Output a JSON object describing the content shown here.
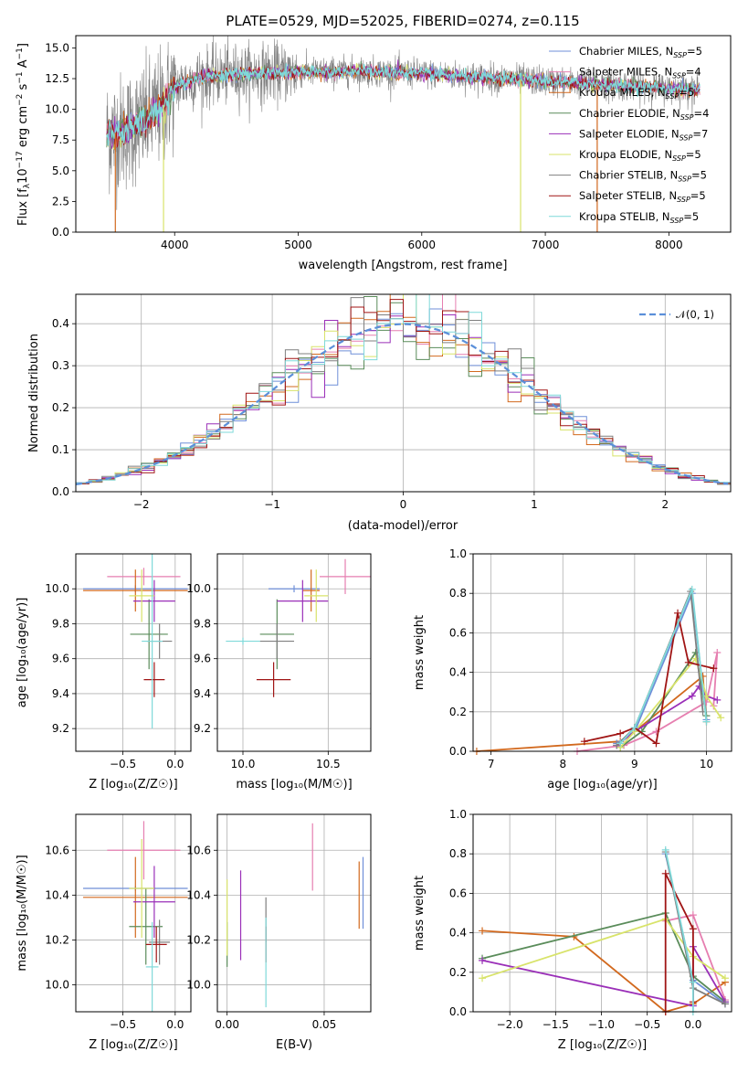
{
  "colors": {
    "chabrier_miles": "#6f8fd8",
    "salpeter_miles": "#e67fb0",
    "kroupa_miles": "#d2691e",
    "chabrier_elodie": "#5a8c5a",
    "salpeter_elodie": "#9a2fb8",
    "kroupa_elodie": "#d8e36a",
    "chabrier_stelib": "#7f7f7f",
    "salpeter_stelib": "#a01515",
    "kroupa_stelib": "#7fd9d9",
    "normal": "#5b8fd9"
  },
  "chart_data": [
    {
      "id": "spectrum",
      "type": "line",
      "title": "PLATE=0529, MJD=52025, FIBERID=0274, z=0.115",
      "xlabel": "wavelength [Angstrom, rest frame]",
      "ylabel": "Flux [f$_\\lambda$10$^{-17}$ erg cm$^{-2}$ s$^{-1}$ A$^{-1}$]",
      "ylabel_parts": {
        "a": "Flux [f",
        "b": "λ",
        "c": "10",
        "d": "−17",
        "e": " erg cm",
        "f": "−2",
        "g": " s",
        "h": "−1",
        "i": " A",
        "j": "−1",
        "k": "]"
      },
      "xlim": [
        3200,
        8500
      ],
      "ylim": [
        0,
        16
      ],
      "xticks": [
        4000,
        5000,
        6000,
        7000,
        8000
      ],
      "yticks": [
        0.0,
        2.5,
        5.0,
        7.5,
        10.0,
        12.5,
        15.0
      ],
      "data_range": [
        3450,
        8250
      ],
      "continuum": [
        [
          3450,
          8.0
        ],
        [
          3600,
          8.2
        ],
        [
          3750,
          9.0
        ],
        [
          3900,
          10.2
        ],
        [
          4000,
          11.8
        ],
        [
          4200,
          12.6
        ],
        [
          4500,
          12.9
        ],
        [
          5000,
          13.0
        ],
        [
          5500,
          13.1
        ],
        [
          6000,
          12.9
        ],
        [
          6500,
          12.6
        ],
        [
          7000,
          12.3
        ],
        [
          7500,
          12.0
        ],
        [
          8000,
          11.7
        ],
        [
          8250,
          11.6
        ]
      ],
      "legend": [
        {
          "key": "chabrier_miles",
          "label": "Chabrier MILES, N",
          "sub": "SSP",
          "suffix": "=5"
        },
        {
          "key": "salpeter_miles",
          "label": "Salpeter MILES, N",
          "sub": "SSP",
          "suffix": "=4"
        },
        {
          "key": "kroupa_miles",
          "label": "Kroupa MILES, N",
          "sub": "SSP",
          "suffix": "=5"
        },
        {
          "key": "chabrier_elodie",
          "label": "Chabrier ELODIE, N",
          "sub": "SSP",
          "suffix": "=4"
        },
        {
          "key": "salpeter_elodie",
          "label": "Salpeter ELODIE, N",
          "sub": "SSP",
          "suffix": "=7"
        },
        {
          "key": "kroupa_elodie",
          "label": "Kroupa ELODIE, N",
          "sub": "SSP",
          "suffix": "=5"
        },
        {
          "key": "chabrier_stelib",
          "label": "Chabrier STELIB, N",
          "sub": "SSP",
          "suffix": "=5"
        },
        {
          "key": "salpeter_stelib",
          "label": "Salpeter STELIB, N",
          "sub": "SSP",
          "suffix": "=5"
        },
        {
          "key": "kroupa_stelib",
          "label": "Kroupa STELIB, N",
          "sub": "SSP",
          "suffix": "=5"
        }
      ],
      "legend_placement": "upper right",
      "dropouts": [
        {
          "key": "kroupa_miles",
          "x": 3520
        },
        {
          "key": "kroupa_elodie",
          "x": 3910
        },
        {
          "key": "kroupa_elodie",
          "x": 6800
        },
        {
          "key": "kroupa_miles",
          "x": 7420
        }
      ]
    },
    {
      "id": "residuals",
      "type": "histogram",
      "xlabel": "(data-model)/error",
      "ylabel": "Normed distribution",
      "xlim": [
        -2.5,
        2.5
      ],
      "ylim": [
        0,
        0.47
      ],
      "xticks": [
        -2,
        -1,
        0,
        1,
        2
      ],
      "yticks": [
        0.0,
        0.1,
        0.2,
        0.3,
        0.4
      ],
      "legend": [
        {
          "key": "normal",
          "label": "𝒩(0, 1)"
        }
      ],
      "legend_placement": "upper right",
      "bin_width": 0.1,
      "grid": true
    },
    {
      "id": "z_age",
      "type": "errorbar",
      "xlabel": "Z [log₁₀(Z/Z☉)]",
      "ylabel": "age  [log₁₀(age/yr)]",
      "xlim": [
        -0.95,
        0.15
      ],
      "ylim": [
        9.07,
        10.2
      ],
      "xticks": [
        -0.5,
        0.0
      ],
      "yticks": [
        9.2,
        9.4,
        9.6,
        9.8,
        10.0
      ],
      "points": [
        {
          "key": "chabrier_miles",
          "x": -0.38,
          "xerr": 0.5,
          "y": 10.0,
          "yerr": 0.02
        },
        {
          "key": "salpeter_miles",
          "x": -0.3,
          "xerr": 0.35,
          "y": 10.07,
          "yerr": 0.05
        },
        {
          "key": "kroupa_miles",
          "x": -0.38,
          "xerr": 0.5,
          "y": 9.99,
          "yerr": 0.12
        },
        {
          "key": "chabrier_elodie",
          "x": -0.25,
          "xerr": 0.18,
          "y": 9.74,
          "yerr": 0.2
        },
        {
          "key": "salpeter_elodie",
          "x": -0.2,
          "xerr": 0.2,
          "y": 9.93,
          "yerr": 0.12
        },
        {
          "key": "kroupa_elodie",
          "x": -0.32,
          "xerr": 0.12,
          "y": 9.96,
          "yerr": 0.15
        },
        {
          "key": "chabrier_stelib",
          "x": -0.15,
          "xerr": 0.12,
          "y": 9.7,
          "yerr": 0.1
        },
        {
          "key": "salpeter_stelib",
          "x": -0.2,
          "xerr": 0.1,
          "y": 9.48,
          "yerr": 0.1
        },
        {
          "key": "kroupa_stelib",
          "x": -0.22,
          "xerr": 0.1,
          "y": 9.7,
          "yerr": 0.5
        }
      ]
    },
    {
      "id": "mass_age",
      "type": "errorbar",
      "xlabel": "mass [log₁₀(M/M☉)]",
      "ylabel": "",
      "xlim": [
        9.85,
        10.75
      ],
      "ylim": [
        9.07,
        10.2
      ],
      "xticks": [
        10.0,
        10.5
      ],
      "yticks": [
        9.2,
        9.4,
        9.6,
        9.8,
        10.0
      ],
      "points": [
        {
          "key": "chabrier_miles",
          "x": 10.3,
          "xerr": 0.15,
          "y": 10.0,
          "yerr": 0.02
        },
        {
          "key": "salpeter_miles",
          "x": 10.6,
          "xerr": 0.15,
          "y": 10.07,
          "yerr": 0.1
        },
        {
          "key": "kroupa_miles",
          "x": 10.4,
          "xerr": 0.05,
          "y": 9.99,
          "yerr": 0.12
        },
        {
          "key": "chabrier_elodie",
          "x": 10.2,
          "xerr": 0.1,
          "y": 9.74,
          "yerr": 0.2
        },
        {
          "key": "salpeter_elodie",
          "x": 10.35,
          "xerr": 0.15,
          "y": 9.93,
          "yerr": 0.12
        },
        {
          "key": "kroupa_elodie",
          "x": 10.43,
          "xerr": 0.07,
          "y": 9.96,
          "yerr": 0.15
        },
        {
          "key": "chabrier_stelib",
          "x": 10.2,
          "xerr": 0.1,
          "y": 9.7,
          "yerr": 0.1
        },
        {
          "key": "salpeter_stelib",
          "x": 10.18,
          "xerr": 0.1,
          "y": 9.48,
          "yerr": 0.1
        },
        {
          "key": "kroupa_stelib",
          "x": 10.0,
          "xerr": 0.1,
          "y": 9.7,
          "yerr": 0.02
        }
      ]
    },
    {
      "id": "age_weight",
      "type": "line",
      "xlabel": "age  [log₁₀(age/yr)]",
      "ylabel": "mass weight",
      "xlim": [
        6.75,
        10.35
      ],
      "ylim": [
        0,
        1.0
      ],
      "xticks": [
        7,
        8,
        9,
        10
      ],
      "yticks": [
        0.0,
        0.2,
        0.4,
        0.6,
        0.8,
        1.0
      ],
      "series": [
        {
          "key": "kroupa_miles",
          "x": [
            6.8,
            8.8,
            9.0,
            9.95,
            10.0
          ],
          "y": [
            0.0,
            0.05,
            0.1,
            0.38,
            0.15
          ]
        },
        {
          "key": "salpeter_miles",
          "x": [
            8.2,
            8.85,
            9.3,
            10.0,
            10.15,
            10.1
          ],
          "y": [
            0.0,
            0.03,
            0.1,
            0.25,
            0.5,
            0.23
          ]
        },
        {
          "key": "chabrier_miles",
          "x": [
            8.75,
            9.0,
            9.8,
            10.0
          ],
          "y": [
            0.04,
            0.1,
            0.8,
            0.16
          ]
        },
        {
          "key": "chabrier_elodie",
          "x": [
            8.8,
            9.1,
            9.85,
            10.0
          ],
          "y": [
            0.02,
            0.1,
            0.5,
            0.18
          ]
        },
        {
          "key": "salpeter_elodie",
          "x": [
            8.75,
            9.0,
            9.8,
            9.9,
            10.0,
            10.15
          ],
          "y": [
            0.03,
            0.1,
            0.28,
            0.33,
            0.28,
            0.26
          ]
        },
        {
          "key": "kroupa_elodie",
          "x": [
            8.8,
            9.0,
            9.85,
            10.0,
            10.2
          ],
          "y": [
            0.02,
            0.1,
            0.47,
            0.28,
            0.17
          ]
        },
        {
          "key": "chabrier_stelib",
          "x": [
            8.75,
            9.0,
            9.78,
            9.95
          ],
          "y": [
            0.03,
            0.12,
            0.81,
            0.2
          ]
        },
        {
          "key": "salpeter_stelib",
          "x": [
            8.3,
            8.8,
            9.0,
            9.3,
            9.6,
            9.75,
            10.1
          ],
          "y": [
            0.05,
            0.09,
            0.12,
            0.04,
            0.7,
            0.45,
            0.42
          ]
        },
        {
          "key": "kroupa_stelib",
          "x": [
            8.8,
            9.0,
            9.8,
            10.0
          ],
          "y": [
            0.04,
            0.12,
            0.82,
            0.15
          ]
        }
      ]
    },
    {
      "id": "z_mass",
      "type": "errorbar",
      "xlabel": "Z [log₁₀(Z/Z☉)]",
      "ylabel": "mass [log₁₀(M/M☉)]",
      "xlim": [
        -0.95,
        0.15
      ],
      "ylim": [
        9.88,
        10.76
      ],
      "xticks": [
        -0.5,
        0.0
      ],
      "yticks": [
        10.0,
        10.2,
        10.4,
        10.6
      ],
      "points": [
        {
          "key": "chabrier_miles",
          "x": -0.38,
          "xerr": 0.5,
          "y": 10.43,
          "yerr": 0.01
        },
        {
          "key": "salpeter_miles",
          "x": -0.3,
          "xerr": 0.35,
          "y": 10.6,
          "yerr": 0.13
        },
        {
          "key": "kroupa_miles",
          "x": -0.38,
          "xerr": 0.5,
          "y": 10.39,
          "yerr": 0.18
        },
        {
          "key": "chabrier_elodie",
          "x": -0.28,
          "xerr": 0.16,
          "y": 10.26,
          "yerr": 0.17
        },
        {
          "key": "salpeter_elodie",
          "x": -0.2,
          "xerr": 0.2,
          "y": 10.37,
          "yerr": 0.16
        },
        {
          "key": "kroupa_elodie",
          "x": -0.32,
          "xerr": 0.12,
          "y": 10.43,
          "yerr": 0.22
        },
        {
          "key": "chabrier_stelib",
          "x": -0.15,
          "xerr": 0.1,
          "y": 10.19,
          "yerr": 0.1
        },
        {
          "key": "salpeter_stelib",
          "x": -0.18,
          "xerr": 0.1,
          "y": 10.18,
          "yerr": 0.08
        },
        {
          "key": "kroupa_stelib",
          "x": -0.22,
          "xerr": 0.06,
          "y": 10.08,
          "yerr": 0.2
        }
      ]
    },
    {
      "id": "ebv_mass",
      "type": "errorbar",
      "xlabel": "E(B-V)",
      "ylabel": "",
      "xlim": [
        -0.005,
        0.074
      ],
      "ylim": [
        9.88,
        10.76
      ],
      "xticks": [
        0.0,
        0.05
      ],
      "yticks": [
        10.0,
        10.2,
        10.4,
        10.6
      ],
      "points": [
        {
          "key": "chabrier_miles",
          "x": 0.07,
          "xerr": 0,
          "y": 10.41,
          "yerr": 0.16
        },
        {
          "key": "salpeter_miles",
          "x": 0.044,
          "xerr": 0,
          "y": 10.57,
          "yerr": 0.15
        },
        {
          "key": "kroupa_miles",
          "x": 0.068,
          "xerr": 0,
          "y": 10.4,
          "yerr": 0.15
        },
        {
          "key": "chabrier_elodie",
          "x": 0.0,
          "xerr": 0,
          "y": 10.18,
          "yerr": 0.1
        },
        {
          "key": "salpeter_elodie",
          "x": 0.007,
          "xerr": 0,
          "y": 10.31,
          "yerr": 0.2
        },
        {
          "key": "kroupa_elodie",
          "x": 0.0,
          "xerr": 0,
          "y": 10.3,
          "yerr": 0.17
        },
        {
          "key": "chabrier_stelib",
          "x": 0.02,
          "xerr": 0,
          "y": 10.29,
          "yerr": 0.1
        },
        {
          "key": "salpeter_stelib",
          "x": 0.02,
          "xerr": 0,
          "y": 10.18,
          "yerr": 0.08
        },
        {
          "key": "kroupa_stelib",
          "x": 0.02,
          "xerr": 0,
          "y": 10.1,
          "yerr": 0.2
        }
      ]
    },
    {
      "id": "z_weight",
      "type": "line",
      "xlabel": "Z [log₁₀(Z/Z☉)]",
      "ylabel": "mass weight",
      "xlim": [
        -2.4,
        0.42
      ],
      "ylim": [
        0,
        1.0
      ],
      "xticks": [
        -2.0,
        -1.5,
        -1.0,
        -0.5,
        0.0
      ],
      "yticks": [
        0.0,
        0.2,
        0.4,
        0.6,
        0.8,
        1.0
      ],
      "series": [
        {
          "key": "kroupa_miles",
          "x": [
            -2.3,
            -1.3,
            -0.3,
            0.0,
            0.35
          ],
          "y": [
            0.41,
            0.38,
            0.0,
            0.04,
            0.15
          ]
        },
        {
          "key": "salpeter_miles",
          "x": [
            -0.3,
            0.0,
            0.35
          ],
          "y": [
            0.46,
            0.49,
            0.06
          ]
        },
        {
          "key": "chabrier_miles",
          "x": [
            -0.3,
            0.0,
            0.35
          ],
          "y": [
            0.8,
            0.16,
            0.04
          ]
        },
        {
          "key": "chabrier_elodie",
          "x": [
            -2.3,
            -0.3,
            0.0,
            0.35
          ],
          "y": [
            0.27,
            0.5,
            0.18,
            0.05
          ]
        },
        {
          "key": "salpeter_elodie",
          "x": [
            -2.3,
            0.0,
            0.0,
            0.35
          ],
          "y": [
            0.26,
            0.03,
            0.33,
            0.05
          ]
        },
        {
          "key": "kroupa_elodie",
          "x": [
            -2.3,
            -0.3,
            0.0,
            0.35
          ],
          "y": [
            0.17,
            0.47,
            0.28,
            0.17
          ]
        },
        {
          "key": "chabrier_stelib",
          "x": [
            -0.3,
            0.0,
            0.35
          ],
          "y": [
            0.81,
            0.12,
            0.04
          ]
        },
        {
          "key": "salpeter_stelib",
          "x": [
            -0.3,
            -0.3,
            0.0,
            0.0
          ],
          "y": [
            0.0,
            0.7,
            0.42,
            0.05
          ]
        },
        {
          "key": "kroupa_stelib",
          "x": [
            -0.3,
            0.0,
            0.0
          ],
          "y": [
            0.82,
            0.15,
            0.0
          ]
        }
      ]
    }
  ]
}
